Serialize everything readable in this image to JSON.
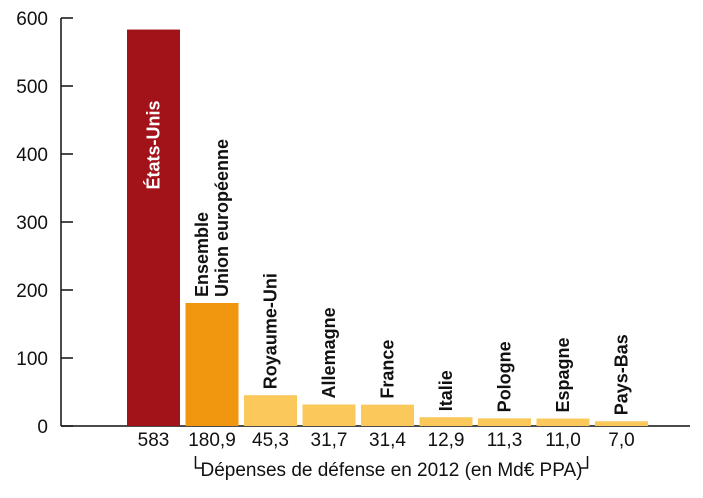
{
  "chart_data": {
    "type": "bar",
    "ylim": [
      0,
      600
    ],
    "yticks": [
      0,
      100,
      200,
      300,
      400,
      500,
      600
    ],
    "xlabel": "Dépenses de défense en 2012 (en Md€ PPA)",
    "grid": false,
    "legend": "none",
    "categories": [
      [
        "États-Unis"
      ],
      [
        "Ensemble",
        "Union européenne"
      ],
      [
        "Royaume-Uni"
      ],
      [
        "Allemagne"
      ],
      [
        "France"
      ],
      [
        "Italie"
      ],
      [
        "Pologne"
      ],
      [
        "Espagne"
      ],
      [
        "Pays-Bas"
      ]
    ],
    "values": [
      583,
      180.9,
      45.3,
      31.7,
      31.4,
      12.9,
      11.3,
      11.0,
      7.0
    ],
    "value_labels": [
      "583",
      "180,9",
      "45,3",
      "31,7",
      "31,4",
      "12,9",
      "11,3",
      "11,0",
      "7,0"
    ],
    "colors": [
      "#a11219",
      "#f0960f",
      "#fbc85c",
      "#fbc85c",
      "#fbc85c",
      "#fbc85c",
      "#fbc85c",
      "#fbc85c",
      "#fbc85c"
    ],
    "name_colors": [
      "#ffffff",
      "#111111",
      "#111111",
      "#111111",
      "#111111",
      "#111111",
      "#111111",
      "#111111",
      "#111111"
    ]
  }
}
